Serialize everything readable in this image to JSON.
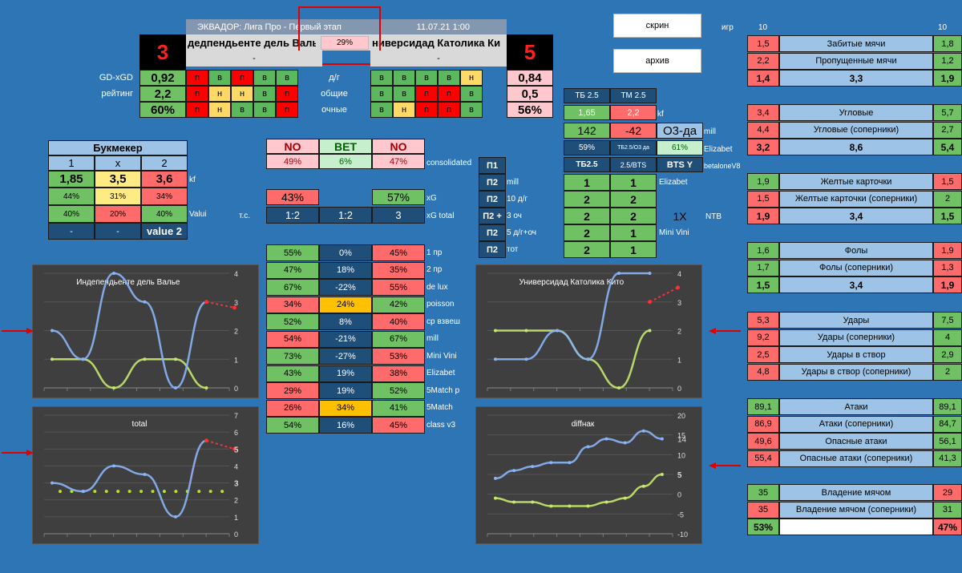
{
  "header": {
    "title": "ЭКВАДОР: Лига Про - Первый этап",
    "date": "11.07.21 1:00",
    "home_team": "дедпендьенте дель Валь",
    "away_team": "ниверсидад Католика Ки",
    "center_pct": "29%",
    "home_score": "3",
    "away_score": "5",
    "home_sub": "-",
    "away_sub": "-"
  },
  "form": {
    "rows": [
      {
        "label": "GD-xGD",
        "home_val": "0,92",
        "home": [
          "п",
          "в",
          "п",
          "в",
          "в"
        ],
        "home_colors": [
          "rd",
          "sg",
          "rd",
          "sg",
          "sg"
        ],
        "mid": "д/г",
        "away": [
          "в",
          "в",
          "в",
          "в",
          "н"
        ],
        "away_colors": [
          "sg",
          "sg",
          "sg",
          "sg",
          "yy"
        ],
        "away_val": "0,84"
      },
      {
        "label": "рейтинг",
        "home_val": "2,2",
        "home": [
          "п",
          "н",
          "н",
          "в",
          "п"
        ],
        "home_colors": [
          "rd",
          "yy",
          "yy",
          "sg",
          "rd"
        ],
        "mid": "общие",
        "away": [
          "в",
          "в",
          "п",
          "п",
          "в"
        ],
        "away_colors": [
          "sg",
          "sg",
          "rd",
          "rd",
          "sg"
        ],
        "away_val": "0,5"
      },
      {
        "label": "",
        "home_val": "60%",
        "home": [
          "п",
          "н",
          "в",
          "в",
          "п"
        ],
        "home_colors": [
          "rd",
          "yy",
          "sg",
          "sg",
          "rd"
        ],
        "mid": "очные",
        "away": [
          "в",
          "н",
          "п",
          "п",
          "в"
        ],
        "away_colors": [
          "sg",
          "yy",
          "rd",
          "rd",
          "sg"
        ],
        "away_val": "56%"
      }
    ]
  },
  "bookmaker": {
    "title": "Букмекер",
    "cols": [
      "1",
      "x",
      "2"
    ],
    "kf": [
      "1,85",
      "3,5",
      "3,6"
    ],
    "kf_label": "kf",
    "pct1": [
      "44%",
      "31%",
      "34%"
    ],
    "pct2": [
      "40%",
      "20%",
      "40%"
    ],
    "valui": "Valui",
    "last": [
      "-",
      "-",
      "value 2"
    ]
  },
  "bet": {
    "headers": [
      "NO",
      "BET",
      "NO"
    ],
    "pcts": [
      "49%",
      "6%",
      "47%"
    ],
    "consolidated": "consolidated",
    "xg": [
      "43%",
      "",
      "57%"
    ],
    "xg_label": "xG",
    "ts_label": "т.с.",
    "xgtotal": [
      "1:2",
      "1:2",
      "3"
    ],
    "xgtotal_label": "xG total"
  },
  "pr": [
    {
      "p": "П1",
      "t": ""
    },
    {
      "p": "П2",
      "t": "mill"
    },
    {
      "p": "П2",
      "t": "10 д/г"
    },
    {
      "p": "П2 +",
      "t": "3 оч"
    },
    {
      "p": "П2",
      "t": "5 д/г+оч"
    },
    {
      "p": "П2",
      "t": "тот"
    }
  ],
  "methods": [
    {
      "a": "55%",
      "ac": "g",
      "b": "0%",
      "bc": "dk",
      "c": "45%",
      "cc": "r",
      "n": "1 пр"
    },
    {
      "a": "47%",
      "ac": "g",
      "b": "18%",
      "bc": "dk",
      "c": "35%",
      "cc": "r",
      "n": "2 пр"
    },
    {
      "a": "67%",
      "ac": "g",
      "b": "-22%",
      "bc": "dk",
      "c": "55%",
      "cc": "r",
      "n": "de lux"
    },
    {
      "a": "34%",
      "ac": "r",
      "b": "24%",
      "bc": "o",
      "c": "42%",
      "cc": "g",
      "n": "poisson"
    },
    {
      "a": "52%",
      "ac": "g",
      "b": "8%",
      "bc": "dk",
      "c": "40%",
      "cc": "r",
      "n": "ср взвеш"
    },
    {
      "a": "54%",
      "ac": "r",
      "b": "-21%",
      "bc": "dk",
      "c": "67%",
      "cc": "g",
      "n": "mill"
    },
    {
      "a": "73%",
      "ac": "g",
      "b": "-27%",
      "bc": "dk",
      "c": "53%",
      "cc": "r",
      "n": "Mini Vini"
    },
    {
      "a": "43%",
      "ac": "g",
      "b": "19%",
      "bc": "dk",
      "c": "38%",
      "cc": "r",
      "n": "Elizabet"
    },
    {
      "a": "29%",
      "ac": "r",
      "b": "19%",
      "bc": "dk",
      "c": "52%",
      "cc": "g",
      "n": "5Match p"
    },
    {
      "a": "26%",
      "ac": "r",
      "b": "34%",
      "bc": "o",
      "c": "41%",
      "cc": "g",
      "n": "5Match"
    },
    {
      "a": "54%",
      "ac": "g",
      "b": "16%",
      "bc": "dk",
      "c": "45%",
      "cc": "r",
      "n": "class v3"
    }
  ],
  "totals": {
    "tb": "ТБ 2.5",
    "tm": "ТМ 2.5",
    "kf": [
      "1,65",
      "2,2"
    ],
    "kf_label": "kf",
    "mill": [
      "142",
      "-42"
    ],
    "o3": "О3-да",
    "mill_label": "mill",
    "eliz": [
      "59%",
      "ТБ2.5/О3 да",
      "61%"
    ],
    "eliz_label": "Elizabet",
    "bts": [
      "ТБ2.5",
      "2.5/BTS",
      "BTS Y"
    ],
    "bts_label": "betaloneV8",
    "rows": [
      [
        "1",
        "1"
      ],
      [
        "2",
        "2"
      ],
      [
        "2",
        "2"
      ],
      [
        "2",
        "1"
      ],
      [
        "2",
        "1"
      ]
    ],
    "row_labels": [
      "Elizabet",
      "",
      "",
      "Mini Vini",
      ""
    ],
    "x1": "1X",
    "ntb": "NTB"
  },
  "buttons": {
    "screen": "скрин",
    "archive": "архив"
  },
  "stats": {
    "games_label": "игр",
    "games_home": "10",
    "games_away": "10",
    "groups": [
      [
        {
          "h": "1,5",
          "hc": "r",
          "n": "Забитые мячи",
          "a": "1,8",
          "ac": "g"
        },
        {
          "h": "2,2",
          "hc": "r",
          "n": "Пропущенные мячи",
          "a": "1,2",
          "ac": "g"
        },
        {
          "h": "1,4",
          "hc": "r",
          "n": "3,3",
          "a": "1,9",
          "ac": "g",
          "total": true
        }
      ],
      [
        {
          "h": "3,4",
          "hc": "r",
          "n": "Угловые",
          "a": "5,7",
          "ac": "g"
        },
        {
          "h": "4,4",
          "hc": "r",
          "n": "Угловые (соперники)",
          "a": "2,7",
          "ac": "g"
        },
        {
          "h": "3,2",
          "hc": "r",
          "n": "8,6",
          "a": "5,4",
          "ac": "g",
          "total": true
        }
      ],
      [
        {
          "h": "1,9",
          "hc": "g",
          "n": "Желтые карточки",
          "a": "1,5",
          "ac": "r"
        },
        {
          "h": "1,5",
          "hc": "r",
          "n": "Желтые карточки (соперники)",
          "a": "2",
          "ac": "g"
        },
        {
          "h": "1,9",
          "hc": "r",
          "n": "3,4",
          "a": "1,5",
          "ac": "g",
          "total": true
        }
      ],
      [
        {
          "h": "1,6",
          "hc": "g",
          "n": "Фолы",
          "a": "1,9",
          "ac": "r"
        },
        {
          "h": "1,7",
          "hc": "g",
          "n": "Фолы (соперники)",
          "a": "1,3",
          "ac": "r"
        },
        {
          "h": "1,5",
          "hc": "g",
          "n": "3,4",
          "a": "1,9",
          "ac": "r",
          "total": true
        }
      ],
      [
        {
          "h": "5,3",
          "hc": "r",
          "n": "Удары",
          "a": "7,5",
          "ac": "g"
        },
        {
          "h": "9,2",
          "hc": "r",
          "n": "Удары (соперники)",
          "a": "4",
          "ac": "g"
        },
        {
          "h": "2,5",
          "hc": "r",
          "n": "Удары в створ",
          "a": "2,9",
          "ac": "g"
        },
        {
          "h": "4,8",
          "hc": "r",
          "n": "Удары в створ (соперники)",
          "a": "2",
          "ac": "g"
        }
      ],
      [
        {
          "h": "89,1",
          "hc": "g",
          "n": "Атаки",
          "a": "89,1",
          "ac": "g"
        },
        {
          "h": "86,9",
          "hc": "r",
          "n": "Атаки (соперники)",
          "a": "84,7",
          "ac": "g"
        },
        {
          "h": "49,6",
          "hc": "r",
          "n": "Опасные атаки",
          "a": "56,1",
          "ac": "g"
        },
        {
          "h": "55,4",
          "hc": "r",
          "n": "Опасные атаки (соперники)",
          "a": "41,3",
          "ac": "g"
        }
      ],
      [
        {
          "h": "35",
          "hc": "g",
          "n": "Владение мячом",
          "a": "29",
          "ac": "r"
        },
        {
          "h": "35",
          "hc": "r",
          "n": "Владение мячом (соперники)",
          "a": "31",
          "ac": "g"
        },
        {
          "h": "53%",
          "hc": "g",
          "n": "",
          "a": "47%",
          "ac": "r",
          "total": true
        }
      ]
    ]
  },
  "charts": {
    "c1": {
      "title": "Индепендьенте  дель Валье",
      "ticks": [
        "0",
        "1",
        "2",
        "3",
        "4"
      ],
      "ymin": 0,
      "ymax": 4,
      "labels": [],
      "blue": [
        2,
        1,
        4,
        3,
        0,
        3
      ],
      "green": [
        1,
        1,
        0,
        1,
        1,
        0
      ],
      "red": [
        3,
        2.8
      ]
    },
    "c2": {
      "title": "Универсидад  Католика Кито",
      "ticks": [
        "0",
        "1",
        "2",
        "3",
        "4"
      ],
      "ymin": 0,
      "ymax": 4,
      "labels": [],
      "blue": [
        1,
        1,
        2,
        1,
        4,
        4
      ],
      "green": [
        2,
        2,
        2,
        1,
        0,
        2
      ],
      "red": [
        3,
        3.5
      ]
    },
    "c3": {
      "title": "total",
      "ticks": [
        "0",
        "1",
        "2",
        "3",
        "4",
        "5",
        "6",
        "7"
      ],
      "ymin": 0,
      "ymax": 7,
      "labels": [
        "3",
        "5"
      ],
      "blue": [
        3,
        2.5,
        4,
        3.5,
        1,
        5.5
      ],
      "green": [
        2.5,
        2.5,
        2.5,
        2.5,
        2.5,
        2.5
      ],
      "red": [
        5.5,
        5
      ]
    },
    "c4": {
      "title": "diffнак",
      "ticks": [
        "-10",
        "-5",
        "0",
        "5",
        "10",
        "15",
        "20"
      ],
      "ymin": -10,
      "ymax": 20,
      "labels": [
        "14",
        "5"
      ],
      "blue": [
        4,
        6,
        7,
        8,
        8,
        12,
        14,
        13,
        16,
        14
      ],
      "green": [
        -1,
        -2,
        -2,
        -3,
        -3,
        -3,
        -2,
        -1,
        2,
        5
      ],
      "red": []
    }
  }
}
